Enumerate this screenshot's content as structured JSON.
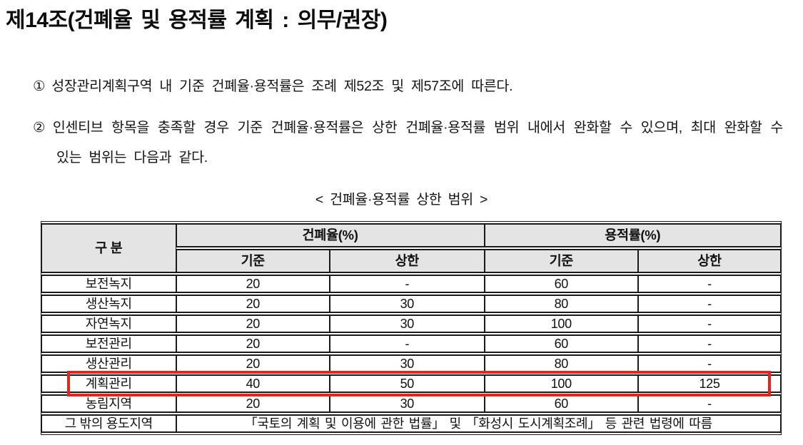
{
  "document": {
    "title": "제14조(건폐율 및 용적률 계획 : 의무/권장)",
    "paragraphs": [
      {
        "marker": "①",
        "text": "성장관리계획구역 내 기준 건폐율·용적률은 조례 제52조 및 제57조에 따른다."
      },
      {
        "marker": "②",
        "text": "인센티브 항목을 충족할 경우 기준 건폐율·용적률은 상한 건폐율·용적률 범위 내에서 완화할 수 있으며, 최대 완화할 수 있는 범위는 다음과 같다."
      }
    ]
  },
  "table": {
    "caption": "< 건폐율·용적률 상한 범위 >",
    "header": {
      "category": "구 분",
      "coverage_group": "건폐율(%)",
      "floor_area_group": "용적률(%)",
      "sub_headers": [
        "기준",
        "상한",
        "기준",
        "상한"
      ]
    },
    "rows": [
      {
        "label": "보전녹지",
        "values": [
          "20",
          "-",
          "60",
          "-"
        ],
        "highlighted": false
      },
      {
        "label": "생산녹지",
        "values": [
          "20",
          "30",
          "80",
          "-"
        ],
        "highlighted": false
      },
      {
        "label": "자연녹지",
        "values": [
          "20",
          "30",
          "100",
          "-"
        ],
        "highlighted": false
      },
      {
        "label": "보전관리",
        "values": [
          "20",
          "-",
          "60",
          "-"
        ],
        "highlighted": false
      },
      {
        "label": "생산관리",
        "values": [
          "20",
          "30",
          "80",
          "-"
        ],
        "highlighted": false
      },
      {
        "label": "계획관리",
        "values": [
          "40",
          "50",
          "100",
          "125"
        ],
        "highlighted": true
      },
      {
        "label": "농림지역",
        "values": [
          "20",
          "30",
          "60",
          "-"
        ],
        "highlighted": false
      }
    ],
    "footer_row": {
      "label": "그 밖의 용도지역",
      "text": "「국토의 계획 및 이용에 관한 법률」 및 「화성시 도시계획조례」 등 관련 법령에 따름"
    },
    "highlight": {
      "row_label": "계획관리",
      "color": "#e8231d"
    }
  },
  "colors": {
    "header_bg": "#e4e4e4",
    "table_border": "#1a1a1a",
    "text": "#111111",
    "highlight_red": "#e8231d"
  }
}
